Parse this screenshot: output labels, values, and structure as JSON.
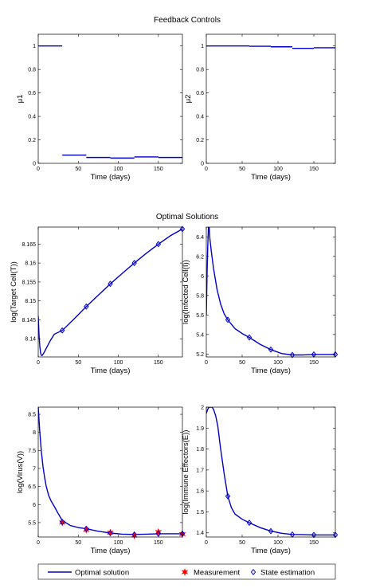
{
  "section_titles": {
    "top": "Feedback Controls",
    "middle": "Optimal Solutions"
  },
  "legend": {
    "optimal": "Optimal solution",
    "measurement": "Measurement",
    "estimation": "State estimation"
  },
  "colors": {
    "line": "#0000cc",
    "marker": "#ff0000"
  },
  "chart_data": [
    {
      "type": "line",
      "xlabel": "Time (days)",
      "ylabel": "μ1",
      "xlim": [
        0,
        180
      ],
      "ylim": [
        0,
        1.1
      ],
      "xticks": [
        0,
        50,
        100,
        150
      ],
      "yticks": [
        0,
        0.2,
        0.4,
        0.6,
        0.8,
        1
      ],
      "yticklabels": [
        "0",
        "0.2",
        "0.4",
        "0.6",
        "0.8",
        "1"
      ],
      "series": [
        {
          "style": "step",
          "segments": [
            [
              0,
              30,
              1.0
            ],
            [
              30,
              60,
              0.07
            ],
            [
              60,
              90,
              0.05
            ],
            [
              90,
              120,
              0.045
            ],
            [
              120,
              150,
              0.055
            ],
            [
              150,
              180,
              0.05
            ]
          ]
        }
      ]
    },
    {
      "type": "line",
      "xlabel": "Time (days)",
      "ylabel": "μ2",
      "xlim": [
        0,
        180
      ],
      "ylim": [
        0,
        1.1
      ],
      "xticks": [
        0,
        50,
        100,
        150
      ],
      "yticks": [
        0,
        0.2,
        0.4,
        0.6,
        0.8,
        1
      ],
      "yticklabels": [
        "0",
        "0.2",
        "0.4",
        "0.6",
        "0.8",
        "1"
      ],
      "series": [
        {
          "style": "step",
          "segments": [
            [
              0,
              30,
              1.0
            ],
            [
              30,
              60,
              1.0
            ],
            [
              60,
              90,
              0.998
            ],
            [
              90,
              120,
              0.993
            ],
            [
              120,
              150,
              0.98
            ],
            [
              150,
              180,
              0.985
            ]
          ]
        }
      ]
    },
    {
      "type": "line",
      "xlabel": "Time (days)",
      "ylabel": "log(Target Cell(T))",
      "xlim": [
        0,
        180
      ],
      "ylim": [
        8.1352,
        8.1695
      ],
      "xticks": [
        0,
        50,
        100,
        150
      ],
      "yticks": [
        8.14,
        8.145,
        8.15,
        8.155,
        8.16,
        8.165
      ],
      "yticklabels": [
        "8.14",
        "8.145",
        "8.15",
        "8.155",
        "8.16",
        "8.165"
      ],
      "series": [
        {
          "style": "line",
          "points": [
            [
              0,
              8.146
            ],
            [
              1,
              8.141
            ],
            [
              2,
              8.138
            ],
            [
              3,
              8.1362
            ],
            [
              4,
              8.1356
            ],
            [
              5,
              8.1356
            ],
            [
              7,
              8.1362
            ],
            [
              10,
              8.1375
            ],
            [
              15,
              8.1395
            ],
            [
              20,
              8.1412
            ],
            [
              30,
              8.1422
            ],
            [
              45,
              8.1453
            ],
            [
              60,
              8.1485
            ],
            [
              75,
              8.1515
            ],
            [
              90,
              8.1545
            ],
            [
              105,
              8.1573
            ],
            [
              120,
              8.16
            ],
            [
              135,
              8.1626
            ],
            [
              150,
              8.165
            ],
            [
              165,
              8.1672
            ],
            [
              180,
              8.169
            ]
          ]
        },
        {
          "style": "estimation",
          "points": [
            [
              30,
              8.1422
            ],
            [
              60,
              8.1485
            ],
            [
              90,
              8.1545
            ],
            [
              120,
              8.16
            ],
            [
              150,
              8.165
            ],
            [
              180,
              8.169
            ]
          ]
        }
      ]
    },
    {
      "type": "line",
      "xlabel": "Time (days)",
      "ylabel": "log(Infected Cell(I))",
      "xlim": [
        0,
        180
      ],
      "ylim": [
        5.17,
        6.5
      ],
      "xticks": [
        0,
        50,
        100,
        150
      ],
      "yticks": [
        5.2,
        5.4,
        5.6,
        5.8,
        6,
        6.2,
        6.4
      ],
      "yticklabels": [
        "5.2",
        "5.4",
        "5.6",
        "5.8",
        "6",
        "6.2",
        "6.4"
      ],
      "series": [
        {
          "style": "line",
          "points": [
            [
              0,
              5.6
            ],
            [
              1,
              6.0
            ],
            [
              2,
              6.3
            ],
            [
              3,
              6.5
            ],
            [
              4,
              6.5
            ],
            [
              5,
              6.38
            ],
            [
              7,
              6.25
            ],
            [
              10,
              6.08
            ],
            [
              15,
              5.86
            ],
            [
              20,
              5.71
            ],
            [
              25,
              5.61
            ],
            [
              30,
              5.55
            ],
            [
              40,
              5.46
            ],
            [
              50,
              5.41
            ],
            [
              60,
              5.37
            ],
            [
              75,
              5.3
            ],
            [
              90,
              5.245
            ],
            [
              105,
              5.205
            ],
            [
              120,
              5.19
            ],
            [
              135,
              5.19
            ],
            [
              150,
              5.195
            ],
            [
              165,
              5.195
            ],
            [
              180,
              5.195
            ]
          ]
        },
        {
          "style": "estimation",
          "points": [
            [
              30,
              5.55
            ],
            [
              60,
              5.37
            ],
            [
              90,
              5.245
            ],
            [
              120,
              5.19
            ],
            [
              150,
              5.195
            ],
            [
              180,
              5.195
            ]
          ]
        }
      ]
    },
    {
      "type": "line",
      "xlabel": "Time (days)",
      "ylabel": "log(Virus(V))",
      "xlim": [
        0,
        180
      ],
      "ylim": [
        5.1,
        8.7
      ],
      "xticks": [
        0,
        50,
        100,
        150
      ],
      "yticks": [
        5.5,
        6,
        6.5,
        7,
        7.5,
        8,
        8.5
      ],
      "yticklabels": [
        "5.5",
        "6",
        "6.5",
        "7",
        "7.5",
        "8",
        "8.5"
      ],
      "series": [
        {
          "style": "line",
          "points": [
            [
              0,
              8.7
            ],
            [
              2,
              8.0
            ],
            [
              4,
              7.45
            ],
            [
              6,
              7.05
            ],
            [
              8,
              6.75
            ],
            [
              10,
              6.5
            ],
            [
              13,
              6.25
            ],
            [
              16,
              6.1
            ],
            [
              20,
              5.95
            ],
            [
              25,
              5.75
            ],
            [
              30,
              5.56
            ],
            [
              40,
              5.42
            ],
            [
              50,
              5.36
            ],
            [
              60,
              5.33
            ],
            [
              75,
              5.26
            ],
            [
              90,
              5.21
            ],
            [
              105,
              5.18
            ],
            [
              120,
              5.17
            ],
            [
              135,
              5.18
            ],
            [
              150,
              5.19
            ],
            [
              165,
              5.19
            ],
            [
              180,
              5.19
            ]
          ]
        },
        {
          "style": "measurement",
          "points": [
            [
              30,
              5.5
            ],
            [
              60,
              5.3
            ],
            [
              90,
              5.22
            ],
            [
              120,
              5.14
            ],
            [
              150,
              5.24
            ],
            [
              180,
              5.18
            ]
          ]
        },
        {
          "style": "estimation",
          "points": [
            [
              30,
              5.52
            ],
            [
              60,
              5.33
            ],
            [
              90,
              5.21
            ],
            [
              120,
              5.17
            ],
            [
              150,
              5.19
            ],
            [
              180,
              5.19
            ]
          ]
        }
      ]
    },
    {
      "type": "line",
      "xlabel": "Time (days)",
      "ylabel": "log(Immune Effectors(E))",
      "xlim": [
        0,
        180
      ],
      "ylim": [
        1.38,
        2.0
      ],
      "xticks": [
        0,
        50,
        100,
        150
      ],
      "yticks": [
        1.4,
        1.5,
        1.6,
        1.7,
        1.8,
        1.9,
        2
      ],
      "yticklabels": [
        "1.4",
        "1.5",
        "1.6",
        "1.7",
        "1.8",
        "1.9",
        "2"
      ],
      "series": [
        {
          "style": "line",
          "points": [
            [
              0,
              1.97
            ],
            [
              2,
              1.99
            ],
            [
              4,
              2.0
            ],
            [
              6,
              2.0
            ],
            [
              8,
              2.0
            ],
            [
              10,
              1.99
            ],
            [
              13,
              1.96
            ],
            [
              16,
              1.91
            ],
            [
              20,
              1.8
            ],
            [
              25,
              1.68
            ],
            [
              30,
              1.575
            ],
            [
              35,
              1.52
            ],
            [
              40,
              1.49
            ],
            [
              50,
              1.465
            ],
            [
              60,
              1.448
            ],
            [
              75,
              1.425
            ],
            [
              90,
              1.408
            ],
            [
              105,
              1.398
            ],
            [
              120,
              1.392
            ],
            [
              135,
              1.391
            ],
            [
              150,
              1.39
            ],
            [
              165,
              1.39
            ],
            [
              180,
              1.39
            ]
          ]
        },
        {
          "style": "estimation",
          "points": [
            [
              30,
              1.575
            ],
            [
              60,
              1.448
            ],
            [
              90,
              1.408
            ],
            [
              120,
              1.392
            ],
            [
              150,
              1.39
            ],
            [
              180,
              1.39
            ]
          ]
        }
      ]
    }
  ]
}
